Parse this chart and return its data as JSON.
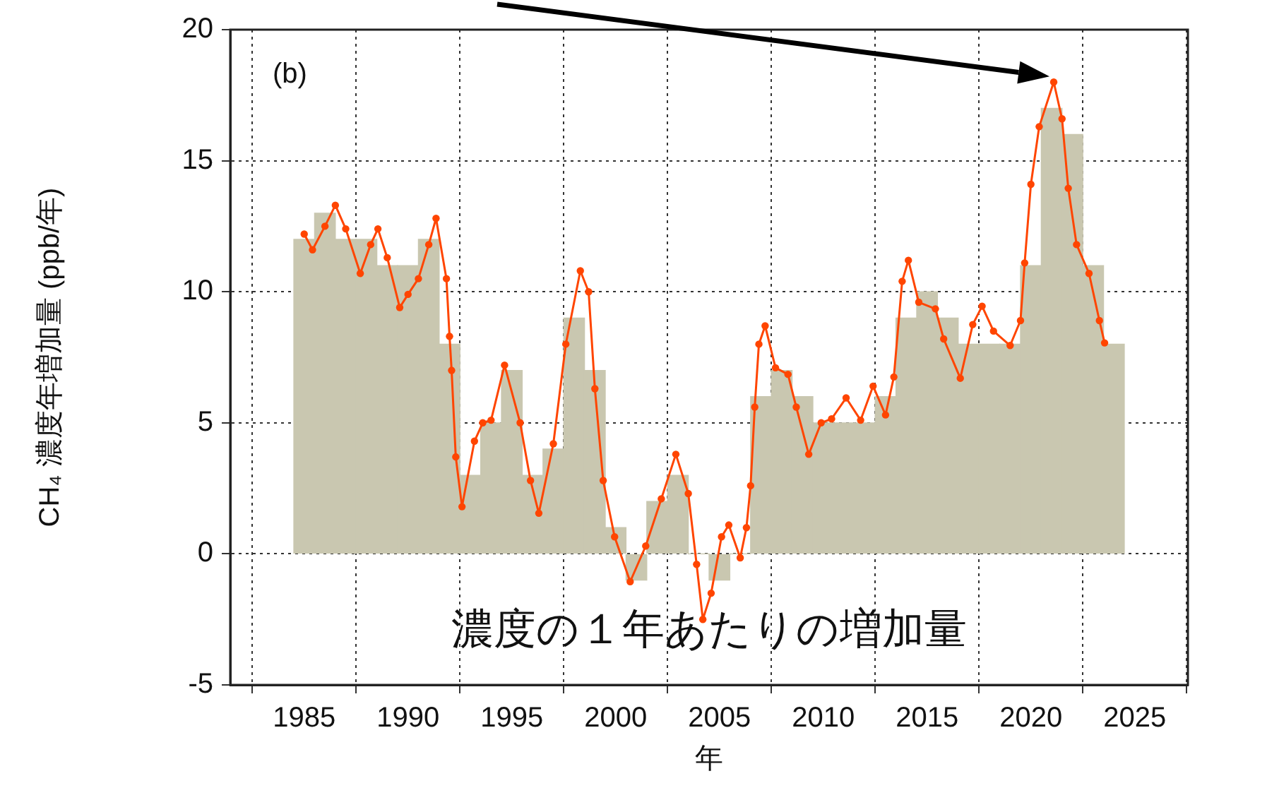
{
  "chart_data": {
    "type": "bar",
    "xlabel": "年",
    "ylabel": "CH₄ 濃度年増加量 (ppb/年)",
    "xlim": [
      1984,
      2025
    ],
    "xticks": [
      1985,
      1990,
      1995,
      2000,
      2005,
      2010,
      2015,
      2020,
      2025
    ],
    "ylim": [
      -5,
      20
    ],
    "yticks": [
      -5,
      0,
      5,
      10,
      15,
      20
    ],
    "grid": true,
    "legend": false,
    "marker": "circle",
    "annotations": [
      "(b)",
      "濃度の１年あたりの増加量"
    ],
    "series": [
      {
        "color": "#c9c7b0",
        "x": [
          1985,
          1986,
          1987,
          1988,
          1989,
          1990,
          1991,
          1992,
          1993,
          1994,
          1995,
          1996,
          1997,
          1998,
          1999,
          2000,
          2001,
          2002,
          2003,
          2004,
          2005,
          2006,
          2007,
          2008,
          2009,
          2010,
          2011,
          2012,
          2013,
          2014,
          2015,
          2016,
          2017,
          2018,
          2019,
          2020,
          2021,
          2022,
          2023,
          2024
        ],
        "values": [
          12,
          13,
          12,
          12,
          11,
          11,
          12,
          8,
          3,
          5,
          7,
          3,
          4,
          9,
          7,
          1,
          -1,
          2,
          3,
          0,
          -1,
          0,
          6,
          7,
          6,
          5,
          5,
          5,
          6,
          9,
          10,
          9,
          8,
          8,
          8,
          11,
          17,
          16,
          11,
          8
        ]
      },
      {
        "type": "line",
        "color": "#ff4500",
        "x": [
          1985.0,
          1985.4,
          1986.0,
          1986.5,
          1987.0,
          1987.7,
          1988.2,
          1988.55,
          1989.0,
          1989.6,
          1990.0,
          1990.5,
          1991.0,
          1991.35,
          1991.85,
          1992.0,
          1992.1,
          1992.3,
          1992.6,
          1993.2,
          1993.6,
          1994.0,
          1994.65,
          1995.4,
          1995.9,
          1996.3,
          1997.0,
          1997.6,
          1998.3,
          1998.7,
          1999.0,
          1999.4,
          1999.95,
          2000.7,
          2001.45,
          2002.2,
          2002.9,
          2003.5,
          2003.9,
          2004.2,
          2004.6,
          2005.1,
          2005.45,
          2006.0,
          2006.3,
          2006.5,
          2006.7,
          2006.9,
          2007.2,
          2007.7,
          2008.3,
          2008.7,
          2009.3,
          2009.9,
          2010.4,
          2011.1,
          2011.8,
          2012.4,
          2013.0,
          2013.4,
          2013.8,
          2014.1,
          2014.6,
          2015.4,
          2015.8,
          2016.6,
          2017.2,
          2017.65,
          2018.2,
          2019.0,
          2019.5,
          2019.7,
          2020.0,
          2020.4,
          2021.1,
          2021.5,
          2021.8,
          2022.2,
          2022.8,
          2023.3,
          2023.55
        ],
        "values": [
          12.2,
          11.6,
          12.5,
          13.3,
          12.4,
          10.7,
          11.8,
          12.4,
          11.3,
          9.4,
          9.9,
          10.5,
          11.8,
          12.8,
          10.5,
          8.3,
          7.0,
          3.7,
          1.8,
          4.3,
          5.0,
          5.1,
          7.2,
          5.0,
          2.8,
          1.55,
          4.2,
          8.0,
          10.8,
          10.0,
          6.3,
          2.8,
          0.65,
          -1.06,
          0.3,
          2.1,
          3.8,
          2.3,
          -0.4,
          -2.5,
          -1.5,
          0.65,
          1.1,
          -0.15,
          1.0,
          2.6,
          5.6,
          8.0,
          8.7,
          7.1,
          6.85,
          5.6,
          3.8,
          5.0,
          5.15,
          5.95,
          5.1,
          6.4,
          5.3,
          6.75,
          10.4,
          11.2,
          9.6,
          9.35,
          8.2,
          6.7,
          8.75,
          9.45,
          8.5,
          7.95,
          8.9,
          11.1,
          14.1,
          16.3,
          18.0,
          16.6,
          13.95,
          11.8,
          10.7,
          8.9,
          8.05
        ]
      }
    ]
  }
}
